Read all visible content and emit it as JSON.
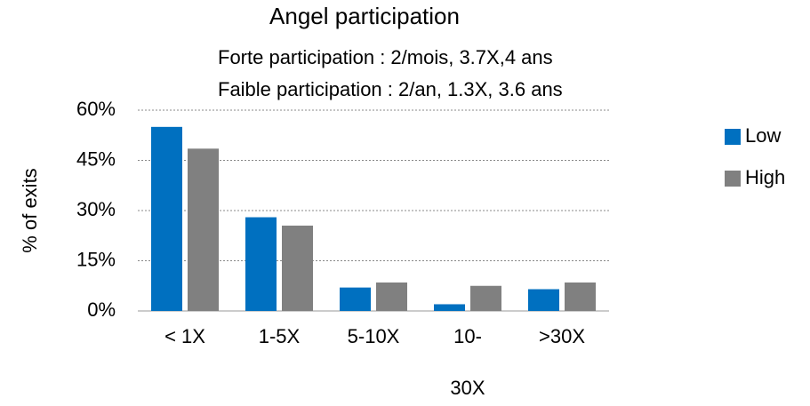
{
  "chart_data": {
    "type": "bar",
    "title": "Angel participation",
    "subtitle": [
      "Forte participation : 2/mois, 3.7X,4 ans",
      "Faible participation : 2/an, 1.3X, 3.6 ans"
    ],
    "y_label": "% of exits",
    "categories": [
      "< 1X",
      "1-5X",
      "5-10X",
      "10-30X",
      ">30X"
    ],
    "series": [
      {
        "name": "Low",
        "color": "#0070c0",
        "values": [
          55,
          28,
          7,
          2,
          6.5
        ]
      },
      {
        "name": "High",
        "color": "#808080",
        "values": [
          48.5,
          25.5,
          8.5,
          7.5,
          8.5
        ]
      }
    ],
    "ylim": [
      0,
      60
    ],
    "yticks": [
      {
        "value": 0,
        "label": "0%"
      },
      {
        "value": 15,
        "label": "15%"
      },
      {
        "value": 30,
        "label": "30%"
      },
      {
        "value": 45,
        "label": "45%"
      },
      {
        "value": 60,
        "label": "60%"
      }
    ],
    "grid": true,
    "legend": "right"
  }
}
